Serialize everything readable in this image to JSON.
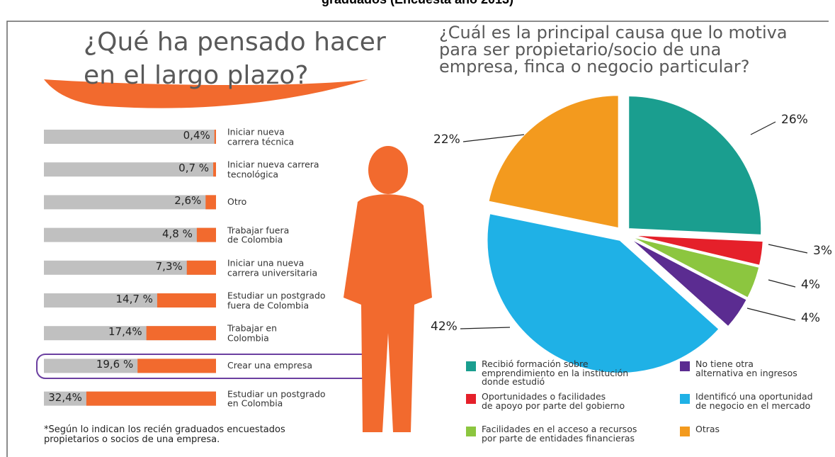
{
  "title": "graduados (Encuesta año 2013)",
  "chart_data": [
    {
      "type": "hbar",
      "title": [
        "¿Qué ha pensado hacer",
        "en el largo plazo?"
      ],
      "categories": [
        "Iniciar nueva\ncarrera técnica",
        "Iniciar nueva carrera\ntecnológica",
        "Otro",
        "Trabajar fuera\nde Colombia",
        "Iniciar una nueva\ncarrera universitaria",
        "Estudiar un postgrado\nfuera de Colombia",
        "Trabajar en\nColombia",
        "Crear una empresa",
        "Estudiar un postgrado\nen Colombia"
      ],
      "values": [
        0.4,
        0.7,
        2.6,
        4.8,
        7.3,
        14.7,
        17.4,
        19.6,
        32.4
      ],
      "value_labels": [
        "0,4%",
        "0,7 %",
        "2,6%",
        "4,8 %",
        "7,3%",
        "14,7 %",
        "17,4%",
        "19,6 %",
        "32,4%"
      ],
      "color": "#f26a2e",
      "xlim": [
        0,
        43
      ],
      "note": "*Según lo indican los recién graduados encuestados\npropietarios o socios de una empresa."
    },
    {
      "type": "pie",
      "title": [
        "¿Cuál es la principal causa que lo motiva",
        "para ser propietario/socio de una",
        "empresa, finca o negocio particular?"
      ],
      "categories": [
        "Recibió formación sobre\nemprendimiento en la institución\ndonde estudió",
        "Oportunidades o facilidades\nde apoyo por parte del gobierno",
        "Facilidades en el acceso a recursos\npor parte de entidades financieras",
        "No tiene otra\nalternativa en ingresos",
        "Identificó una oportunidad\nde negocio en el mercado",
        "Otras"
      ],
      "values": [
        26,
        3,
        4,
        4,
        42,
        22
      ],
      "value_labels": [
        "26%",
        "3%",
        "4%",
        "4%",
        "42%",
        "22%"
      ],
      "colors": [
        "#1a9e8f",
        "#e5202a",
        "#8cc63f",
        "#5b2c91",
        "#1fb1e6",
        "#f39a1e"
      ]
    }
  ]
}
